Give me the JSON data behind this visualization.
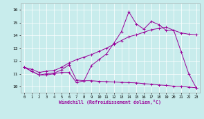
{
  "xlabel": "Windchill (Refroidissement éolien,°C)",
  "background_color": "#c8ecec",
  "line_color": "#990099",
  "xlim": [
    -0.5,
    23.5
  ],
  "ylim": [
    9.5,
    16.5
  ],
  "xticks": [
    0,
    1,
    2,
    3,
    4,
    5,
    6,
    7,
    8,
    9,
    10,
    11,
    12,
    13,
    14,
    15,
    16,
    17,
    18,
    19,
    20,
    21,
    22,
    23
  ],
  "yticks": [
    10,
    11,
    12,
    13,
    14,
    15,
    16
  ],
  "hours": [
    0,
    1,
    2,
    3,
    4,
    5,
    6,
    7,
    8,
    9,
    10,
    11,
    12,
    13,
    14,
    15,
    16,
    17,
    18,
    19,
    20,
    21,
    22,
    23
  ],
  "line1": [
    11.5,
    11.2,
    10.9,
    10.9,
    11.0,
    11.1,
    11.1,
    10.3,
    10.45,
    11.65,
    12.1,
    12.55,
    13.4,
    14.3,
    15.85,
    14.9,
    14.5,
    15.1,
    14.85,
    14.4,
    14.4,
    12.7,
    11.0,
    9.9
  ],
  "line2": [
    11.5,
    11.2,
    10.9,
    11.0,
    11.05,
    11.3,
    11.7,
    10.5,
    10.45,
    10.45,
    10.4,
    10.38,
    10.35,
    10.32,
    10.3,
    10.28,
    10.22,
    10.18,
    10.12,
    10.08,
    10.02,
    10.0,
    9.95,
    9.9
  ],
  "line3": [
    11.5,
    11.35,
    11.1,
    11.2,
    11.25,
    11.5,
    11.85,
    12.1,
    12.3,
    12.5,
    12.75,
    13.0,
    13.3,
    13.6,
    13.9,
    14.05,
    14.25,
    14.45,
    14.55,
    14.65,
    14.4,
    14.2,
    14.1,
    14.05
  ]
}
